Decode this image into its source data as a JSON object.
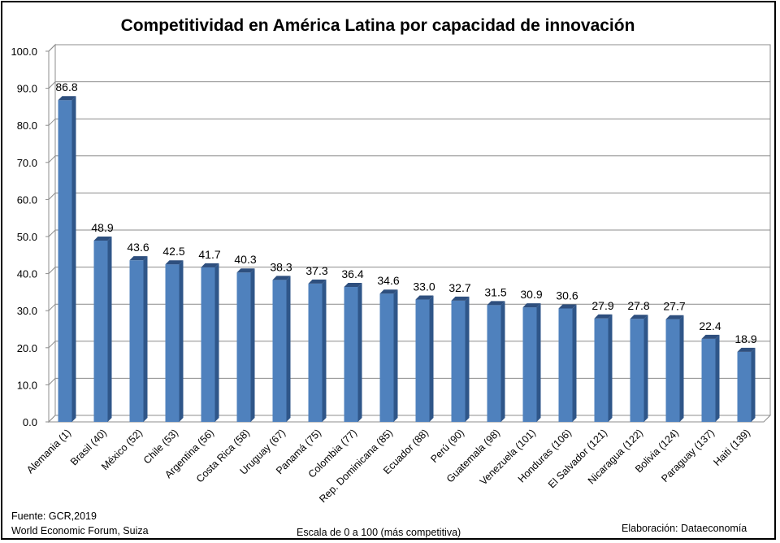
{
  "chart_data": {
    "type": "bar",
    "title": "Competitividad en América Latina por capacidad de innovación",
    "categories": [
      "Alemania (1)",
      "Brasil (40)",
      "México (52)",
      "Chile (53)",
      "Argentina (56)",
      "Costa Rica (58)",
      "Uruguay (67)",
      "Panamá (75)",
      "Colombia (77)",
      "Rep. Dominicana (85)",
      "Ecuador (88)",
      "Perú (90)",
      "Guatemala (98)",
      "Venezuela (101)",
      "Honduras (106)",
      "El Salvador (121)",
      "Nicaragua (122)",
      "Bolivia (124)",
      "Paraguay (137)",
      "Haiti (139)"
    ],
    "values": [
      86.8,
      48.9,
      43.6,
      42.5,
      41.7,
      40.3,
      38.3,
      37.3,
      36.4,
      34.6,
      33.0,
      32.7,
      31.5,
      30.9,
      30.6,
      27.9,
      27.8,
      27.7,
      22.4,
      18.9
    ],
    "value_labels": [
      "86.8",
      "48.9",
      "43.6",
      "42.5",
      "41.7",
      "40.3",
      "38.3",
      "37.3",
      "36.4",
      "34.6",
      "33.0",
      "32.7",
      "31.5",
      "30.9",
      "30.6",
      "27.9",
      "27.8",
      "27.7",
      "22.4",
      "18.9"
    ],
    "yticks": [
      "0.0",
      "10.0",
      "20.0",
      "30.0",
      "40.0",
      "50.0",
      "60.0",
      "70.0",
      "80.0",
      "90.0",
      "100.0"
    ],
    "ylim": [
      0,
      100
    ],
    "grid": true,
    "bar_color": "#4F81BD",
    "bar_side_color": "#2F5689",
    "bar_top_color": "#2E4F7E"
  },
  "notes": {
    "source_line1": "Fuente:  GCR,2019",
    "source_line2": "World Economic Forum, Suiza",
    "scale": "Escala de 0 a 100 (más competitiva)",
    "credit": "Elaboración: Dataeconomía"
  }
}
